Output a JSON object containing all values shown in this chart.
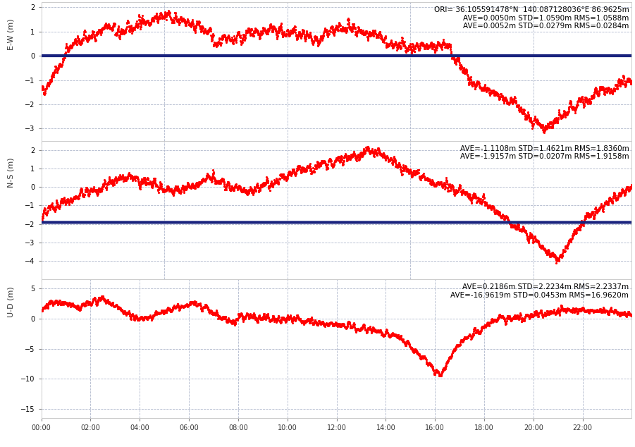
{
  "panel1_ylabel": "E-W (m)",
  "panel2_ylabel": "N-S (m)",
  "panel3_ylabel": "U-D (m)",
  "panel1_ylim": [
    -3.5,
    2.2
  ],
  "panel2_ylim": [
    -5.0,
    2.5
  ],
  "panel3_ylim": [
    -16.5,
    6.5
  ],
  "panel1_yticks": [
    -3,
    -2,
    -1,
    0,
    1,
    2
  ],
  "panel2_yticks": [
    -4,
    -3,
    -2,
    -1,
    0,
    1,
    2
  ],
  "panel3_yticks": [
    -15,
    -10,
    -5,
    0,
    5
  ],
  "panel1_hline": 0.0,
  "panel2_hline": -1.9157,
  "panel3_hline": -16.9619,
  "xtick_labels": [
    "00:00",
    "02:00",
    "04:00",
    "06:00",
    "08:00",
    "10:00",
    "12:00",
    "14:00",
    "16:00",
    "18:00",
    "20:00",
    "22:00"
  ],
  "panel1_stats": "ORI= 36.105591478°N  140.087128036°E 86.9625m\n    AVE=0.0050m STD=1.0590m RMS=1.0588m\n    AVE=0.0052m STD=0.0279m RMS=0.0284m",
  "panel2_stats": "AVE=-1.1108m STD=1.4621m RMS=1.8360m\n    AVE=-1.9157m STD=0.0207m RMS=1.9158m",
  "panel3_stats": "AVE=0.2186m STD=2.2234m RMS=2.2337m\n    AVE=-16.9619m STD=0.0453m RMS=16.9620m",
  "dot_color": "#FF0000",
  "line_color": "#1a237e",
  "bg_color": "#ffffff",
  "grid_color": "#b0b8cc",
  "dot_size": 2.5,
  "line_width": 3.0,
  "seed": 42,
  "n_points": 2880
}
